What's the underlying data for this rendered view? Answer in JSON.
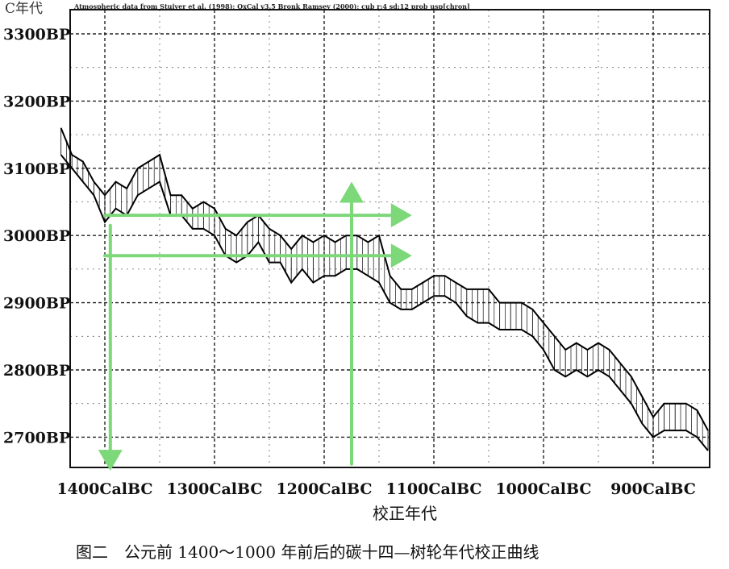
{
  "chart_data": {
    "type": "line",
    "corner_label": "C年代",
    "credit_line": "Atmospheric data from Stuiver et al. (1998); OxCal v3.5 Bronk Ramsey (2000); cub r:4 sd:12 prob usp[chron]",
    "xlabel": "校正年代",
    "caption": "图二　公元前 1400～1000 年前后的碳十四—树轮年代校正曲线",
    "x_ticks": [
      "1400CalBC",
      "1300CalBC",
      "1200CalBC",
      "1100CalBC",
      "1000CalBC",
      "900CalBC"
    ],
    "y_ticks": [
      "3300BP",
      "3200BP",
      "3100BP",
      "3000BP",
      "2900BP",
      "2800BP",
      "2700BP"
    ],
    "xlim": [
      1440,
      850
    ],
    "ylim": [
      2645,
      3345
    ],
    "grid": true,
    "x": [
      1440,
      1430,
      1420,
      1410,
      1400,
      1390,
      1380,
      1370,
      1360,
      1350,
      1340,
      1330,
      1320,
      1310,
      1300,
      1290,
      1280,
      1270,
      1260,
      1250,
      1240,
      1230,
      1220,
      1210,
      1200,
      1190,
      1180,
      1170,
      1160,
      1150,
      1140,
      1130,
      1120,
      1110,
      1100,
      1090,
      1080,
      1070,
      1060,
      1050,
      1040,
      1030,
      1020,
      1010,
      1000,
      990,
      980,
      970,
      960,
      950,
      940,
      930,
      920,
      910,
      900,
      890,
      880,
      870,
      860,
      850
    ],
    "series": [
      {
        "role": "upper",
        "values": [
          3160,
          3120,
          3110,
          3080,
          3060,
          3080,
          3070,
          3100,
          3110,
          3120,
          3060,
          3060,
          3040,
          3050,
          3040,
          3010,
          3000,
          3020,
          3030,
          3010,
          3000,
          2980,
          3000,
          2990,
          3000,
          2990,
          3000,
          3000,
          2990,
          3000,
          2940,
          2920,
          2920,
          2930,
          2940,
          2940,
          2930,
          2920,
          2920,
          2920,
          2900,
          2900,
          2900,
          2890,
          2870,
          2850,
          2830,
          2840,
          2830,
          2840,
          2830,
          2810,
          2790,
          2760,
          2730,
          2750,
          2750,
          2750,
          2740,
          2710
        ]
      },
      {
        "role": "lower",
        "values": [
          3120,
          3100,
          3080,
          3060,
          3020,
          3040,
          3030,
          3060,
          3070,
          3080,
          3030,
          3030,
          3010,
          3010,
          3000,
          2970,
          2960,
          2970,
          2990,
          2960,
          2960,
          2930,
          2950,
          2930,
          2940,
          2940,
          2950,
          2950,
          2940,
          2930,
          2900,
          2890,
          2890,
          2900,
          2910,
          2910,
          2900,
          2880,
          2870,
          2870,
          2860,
          2860,
          2860,
          2850,
          2830,
          2800,
          2790,
          2800,
          2790,
          2800,
          2790,
          2770,
          2750,
          2720,
          2700,
          2710,
          2710,
          2710,
          2700,
          2680
        ]
      }
    ],
    "annotations": [
      {
        "type": "arrow",
        "color": "#7dd87a",
        "from": [
          1400,
          3030
        ],
        "to": [
          1120,
          3030
        ]
      },
      {
        "type": "arrow",
        "color": "#7dd87a",
        "from": [
          1400,
          2970
        ],
        "to": [
          1120,
          2970
        ]
      },
      {
        "type": "arrow",
        "color": "#7dd87a",
        "from": [
          1395,
          3015
        ],
        "to": [
          1395,
          2650
        ]
      },
      {
        "type": "arrow",
        "color": "#7dd87a",
        "from": [
          1175,
          2660
        ],
        "to": [
          1175,
          3080
        ]
      }
    ]
  }
}
